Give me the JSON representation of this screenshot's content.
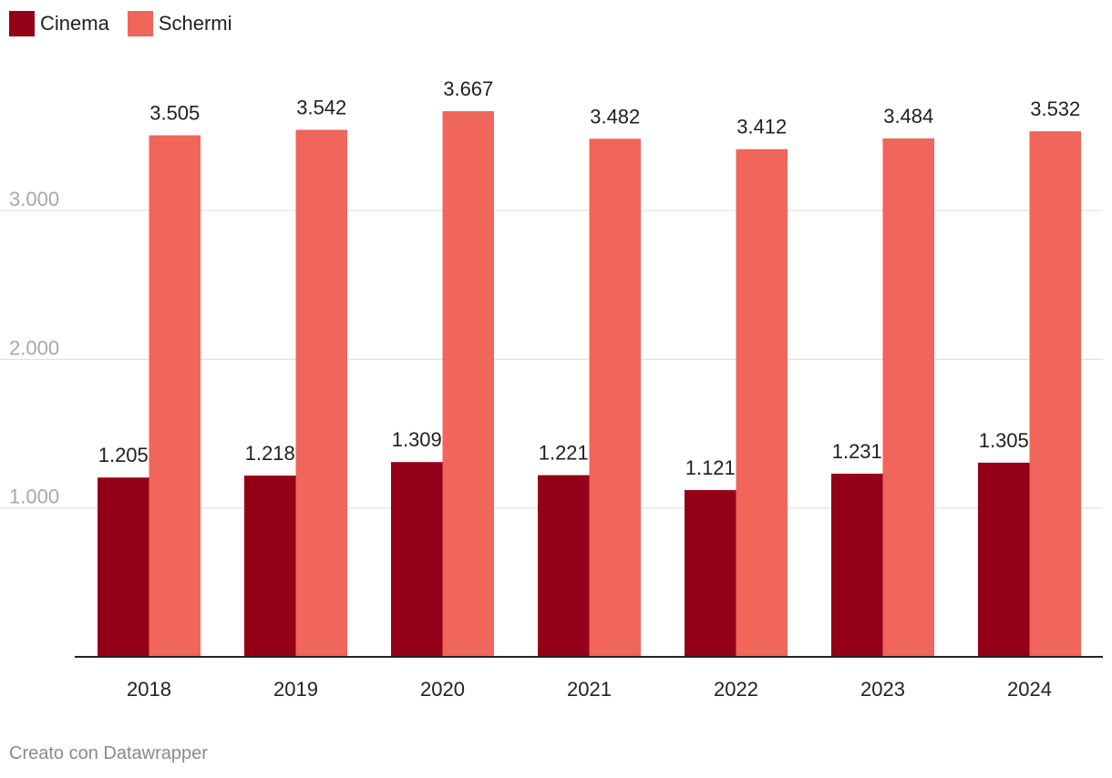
{
  "legend": {
    "items": [
      {
        "label": "Cinema",
        "color": "#940018"
      },
      {
        "label": "Schermi",
        "color": "#f0665a"
      }
    ]
  },
  "footer": {
    "credit": "Creato con Datawrapper"
  },
  "chart_data": {
    "type": "bar",
    "title": "",
    "xlabel": "",
    "ylabel": "",
    "categories": [
      "2018",
      "2019",
      "2020",
      "2021",
      "2022",
      "2023",
      "2024"
    ],
    "series": [
      {
        "name": "Cinema",
        "color": "#940018",
        "values": [
          1205,
          1218,
          1309,
          1221,
          1121,
          1231,
          1305
        ],
        "labels": [
          "1.205",
          "1.218",
          "1.309",
          "1.221",
          "1.121",
          "1.231",
          "1.305"
        ]
      },
      {
        "name": "Schermi",
        "color": "#f0665a",
        "values": [
          3505,
          3542,
          3667,
          3482,
          3412,
          3484,
          3532
        ],
        "labels": [
          "3.505",
          "3.542",
          "3.667",
          "3.482",
          "3.412",
          "3.484",
          "3.532"
        ]
      }
    ],
    "ylim": [
      0,
      4000
    ],
    "yticks": [
      1000,
      2000,
      3000
    ],
    "ytick_labels": [
      "1.000",
      "2.000",
      "3.000"
    ],
    "grid": true,
    "legend_position": "top-left"
  }
}
